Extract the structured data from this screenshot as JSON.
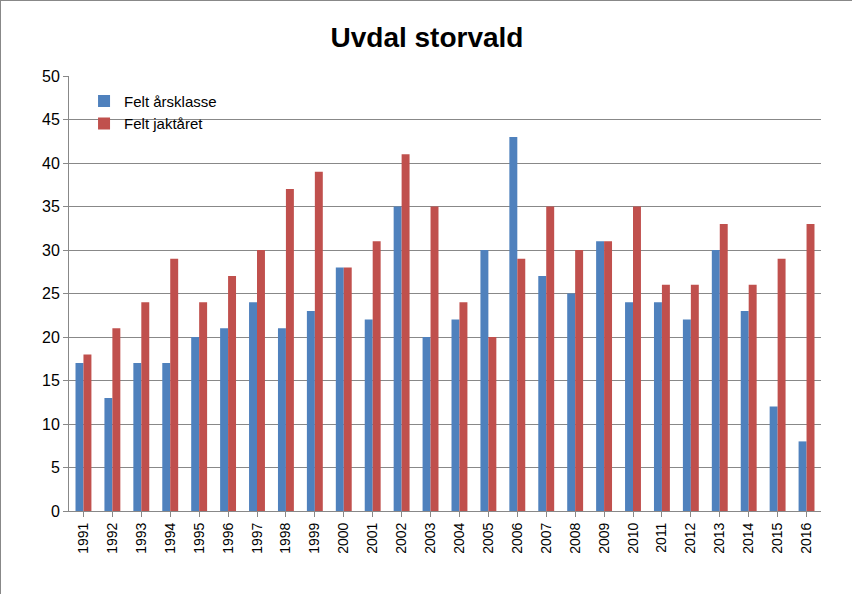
{
  "chart_data": {
    "type": "bar",
    "title": "Uvdal storvald",
    "categories": [
      "1991",
      "1992",
      "1993",
      "1994",
      "1995",
      "1996",
      "1997",
      "1998",
      "1999",
      "2000",
      "2001",
      "2002",
      "2003",
      "2004",
      "2005",
      "2006",
      "2007",
      "2008",
      "2009",
      "2010",
      "2011",
      "2012",
      "2013",
      "2014",
      "2015",
      "2016"
    ],
    "series": [
      {
        "name": "Felt årsklasse",
        "color": "#4f81bd",
        "values": [
          17,
          13,
          17,
          17,
          20,
          21,
          24,
          21,
          23,
          28,
          22,
          35,
          20,
          22,
          30,
          43,
          27,
          25,
          31,
          24,
          24,
          22,
          30,
          23,
          12,
          8
        ]
      },
      {
        "name": "Felt jaktåret",
        "color": "#c0504d",
        "values": [
          18,
          21,
          24,
          29,
          24,
          27,
          30,
          37,
          39,
          28,
          31,
          41,
          35,
          24,
          20,
          29,
          35,
          30,
          31,
          35,
          26,
          26,
          33,
          26,
          29,
          33
        ]
      }
    ],
    "ylim": [
      0,
      50
    ],
    "yticks": [
      0,
      5,
      10,
      15,
      20,
      25,
      30,
      35,
      40,
      45,
      50
    ],
    "grid": true,
    "legend": "top-left"
  }
}
